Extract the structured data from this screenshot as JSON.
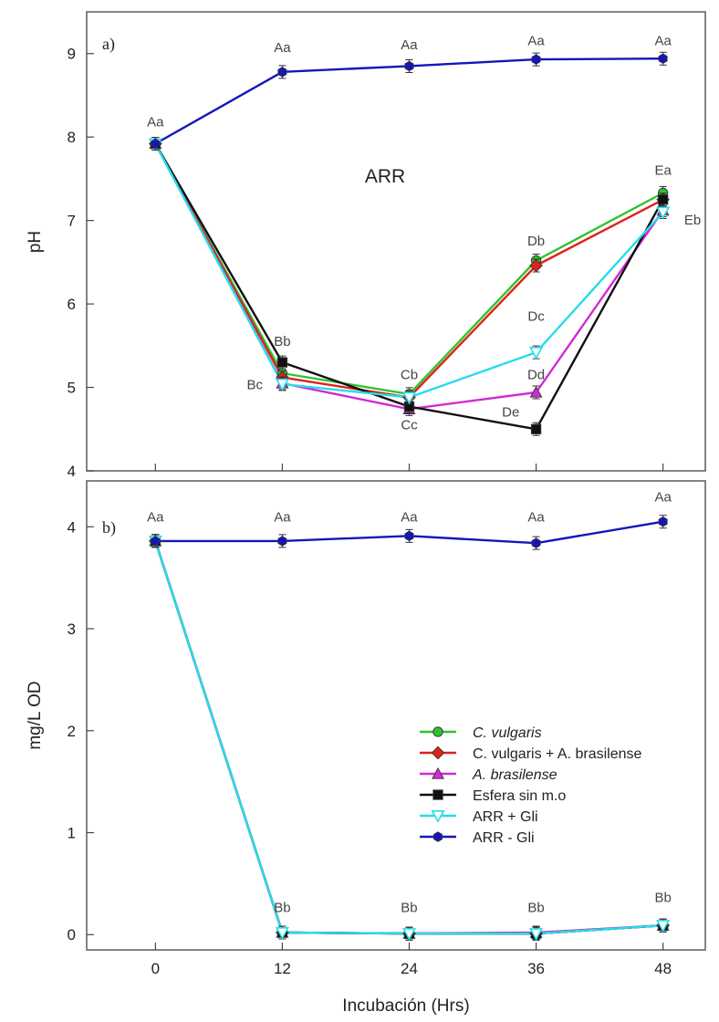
{
  "chart_data": [
    {
      "type": "line",
      "panel_label": "a)",
      "label": "ARR",
      "xlabel": "",
      "ylabel": "pH",
      "ylim": [
        4,
        9.5
      ],
      "yticks": [
        4,
        5,
        6,
        7,
        8,
        9
      ],
      "x": [
        0,
        12,
        24,
        36,
        48
      ],
      "xticks": [
        0,
        12,
        24,
        36,
        48
      ],
      "grid": false,
      "series": [
        {
          "name": "C. vulgaris",
          "italic": true,
          "color": "#2fc42f",
          "marker": "circle",
          "values": [
            7.92,
            5.17,
            4.92,
            6.52,
            7.33
          ]
        },
        {
          "name": "C. vulgaris + A. brasilense",
          "color": "#e0201c",
          "marker": "diamond",
          "values": [
            7.92,
            5.12,
            4.88,
            6.46,
            7.25
          ]
        },
        {
          "name": "A. brasilense",
          "italic": true,
          "color": "#d22ad2",
          "marker": "triangle-up",
          "values": [
            7.92,
            5.05,
            4.74,
            4.94,
            7.12
          ]
        },
        {
          "name": "Esfera sin m.o",
          "color": "#111111",
          "marker": "square",
          "values": [
            7.92,
            5.3,
            4.77,
            4.5,
            7.25
          ]
        },
        {
          "name": "ARR + Gli",
          "color": "#26dcea",
          "marker": "triangle-down",
          "values": [
            7.92,
            5.04,
            4.88,
            5.42,
            7.1
          ]
        },
        {
          "name": "ARR - Gli",
          "color": "#1515bb",
          "marker": "hexagon",
          "values": [
            7.92,
            8.78,
            8.85,
            8.93,
            8.94
          ]
        }
      ],
      "annotations": [
        {
          "text": "Aa",
          "x": 0,
          "y": 8.13
        },
        {
          "text": "Aa",
          "x": 12,
          "y": 9.02
        },
        {
          "text": "Aa",
          "x": 24,
          "y": 9.05
        },
        {
          "text": "Aa",
          "x": 36,
          "y": 9.1
        },
        {
          "text": "Aa",
          "x": 48,
          "y": 9.1
        },
        {
          "text": "Bb",
          "x": 12,
          "y": 5.5
        },
        {
          "text": "Bc",
          "x": 9.4,
          "y": 4.98
        },
        {
          "text": "Cb",
          "x": 24,
          "y": 5.1
        },
        {
          "text": "Cc",
          "x": 24,
          "y": 4.5
        },
        {
          "text": "Db",
          "x": 36,
          "y": 6.7
        },
        {
          "text": "Dc",
          "x": 36,
          "y": 5.8
        },
        {
          "text": "Dd",
          "x": 36,
          "y": 5.1
        },
        {
          "text": "De",
          "x": 33.6,
          "y": 4.65
        },
        {
          "text": "Ea",
          "x": 48,
          "y": 7.55
        },
        {
          "text": "Eb",
          "x": 50.8,
          "y": 6.95
        }
      ]
    },
    {
      "type": "line",
      "panel_label": "b)",
      "xlabel": "Incubación (Hrs)",
      "ylabel": "mg/L OD",
      "ylim": [
        -0.15,
        4.45
      ],
      "yticks": [
        0,
        1,
        2,
        3,
        4
      ],
      "x": [
        0,
        12,
        24,
        36,
        48
      ],
      "xticks": [
        0,
        12,
        24,
        36,
        48
      ],
      "grid": false,
      "legend_position": "bottom-right",
      "series": [
        {
          "name": "C. vulgaris",
          "italic": true,
          "color": "#2fc42f",
          "marker": "circle",
          "values": [
            3.86,
            0.02,
            0.01,
            0.01,
            0.09
          ]
        },
        {
          "name": "C. vulgaris + A. brasilense",
          "color": "#e0201c",
          "marker": "diamond",
          "values": [
            3.86,
            0.02,
            0.01,
            0.01,
            0.09
          ]
        },
        {
          "name": "A. brasilense",
          "italic": true,
          "color": "#d22ad2",
          "marker": "triangle-up",
          "values": [
            3.86,
            0.02,
            0.01,
            0.02,
            0.09
          ]
        },
        {
          "name": "Esfera sin m.o",
          "color": "#111111",
          "marker": "square",
          "values": [
            3.86,
            0.02,
            0.01,
            0.01,
            0.09
          ]
        },
        {
          "name": "ARR + Gli",
          "color": "#26dcea",
          "marker": "triangle-down",
          "values": [
            3.86,
            0.02,
            0.01,
            0.01,
            0.09
          ]
        },
        {
          "name": "ARR - Gli",
          "color": "#1515bb",
          "marker": "hexagon",
          "values": [
            3.86,
            3.86,
            3.91,
            3.84,
            4.05
          ]
        }
      ],
      "annotations": [
        {
          "text": "Aa",
          "x": 0,
          "y": 4.05
        },
        {
          "text": "Aa",
          "x": 12,
          "y": 4.05
        },
        {
          "text": "Aa",
          "x": 24,
          "y": 4.05
        },
        {
          "text": "Aa",
          "x": 36,
          "y": 4.05
        },
        {
          "text": "Aa",
          "x": 48,
          "y": 4.25
        },
        {
          "text": "Bb",
          "x": 12,
          "y": 0.22
        },
        {
          "text": "Bb",
          "x": 24,
          "y": 0.22
        },
        {
          "text": "Bb",
          "x": 36,
          "y": 0.22
        },
        {
          "text": "Bb",
          "x": 48,
          "y": 0.32
        }
      ]
    }
  ]
}
